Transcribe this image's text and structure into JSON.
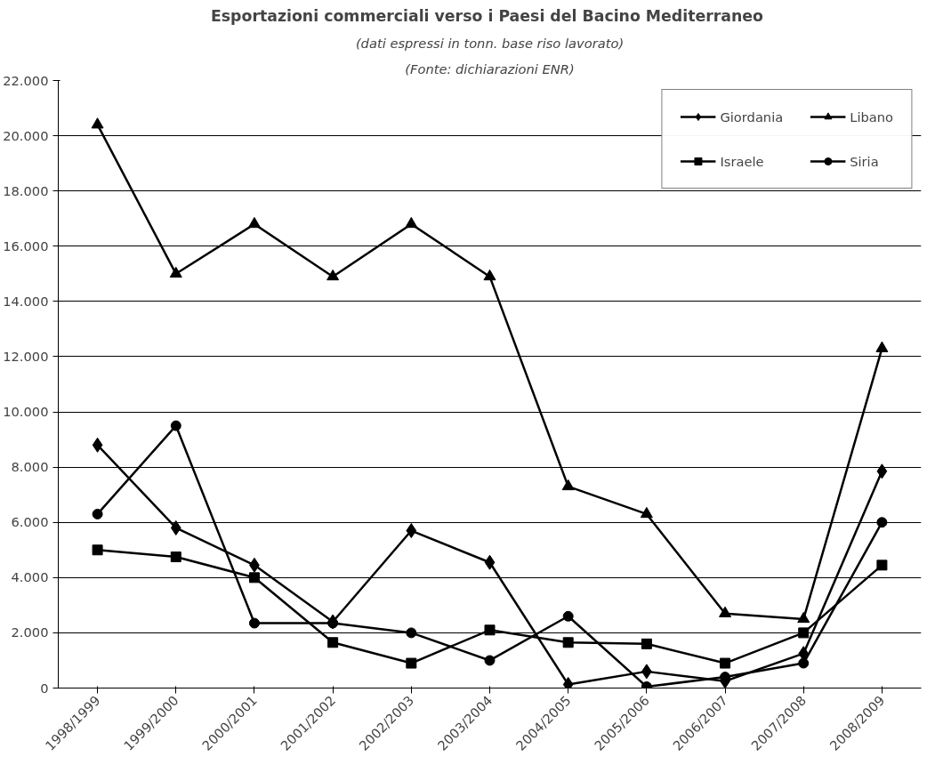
{
  "chart_data": {
    "type": "line",
    "title": "Esportazioni commerciali verso i  Paesi del Bacino Mediterraneo",
    "subtitle": "(dati espressi in tonn. base riso lavorato)",
    "annotations": [
      "(Fonte: dichiarazioni ENR)"
    ],
    "categories": [
      "1998/1999",
      "1999/2000",
      "2000/2001",
      "2001/2002",
      "2002/2003",
      "2003/2004",
      "2004/2005",
      "2005/2006",
      "2006/2007",
      "2007/2008",
      "2008/2009"
    ],
    "series": [
      {
        "name": "Giordania",
        "color": "#000000",
        "marker": "diamond",
        "values": [
          8800,
          5800,
          4450,
          2400,
          5700,
          4550,
          130,
          600,
          250,
          1250,
          7850
        ]
      },
      {
        "name": "Israele",
        "color": "#000000",
        "marker": "square",
        "values": [
          5000,
          4750,
          4000,
          1650,
          900,
          2100,
          1650,
          1600,
          900,
          2000,
          4450
        ]
      },
      {
        "name": "Libano",
        "color": "#000000",
        "marker": "triangle",
        "values": [
          20400,
          15000,
          16800,
          14900,
          16800,
          14900,
          7300,
          6300,
          2700,
          2500,
          12300
        ]
      },
      {
        "name": "Siria",
        "color": "#000000",
        "marker": "circle",
        "values": [
          6300,
          9500,
          2350,
          2350,
          2000,
          1000,
          2600,
          50,
          400,
          900,
          6000
        ]
      }
    ],
    "ylim": [
      0,
      22000
    ],
    "yticks": [
      0,
      {
        "value": 2000,
        "label": "2.000"
      },
      {
        "value": 4000,
        "label": "4.000"
      },
      {
        "value": 6000,
        "label": "6.000"
      },
      {
        "value": 8000,
        "label": "8.000"
      },
      {
        "value": 10000,
        "label": "10.000"
      },
      {
        "value": 12000,
        "label": "12.000"
      },
      {
        "value": 14000,
        "label": "14.000"
      },
      {
        "value": 16000,
        "label": "16.000"
      },
      {
        "value": 18000,
        "label": "18.000"
      },
      {
        "value": 20000,
        "label": "20.000"
      },
      {
        "value": 22000,
        "label": "22.000"
      }
    ],
    "grid": "y",
    "legend": "top right",
    "line_style": "solid"
  }
}
